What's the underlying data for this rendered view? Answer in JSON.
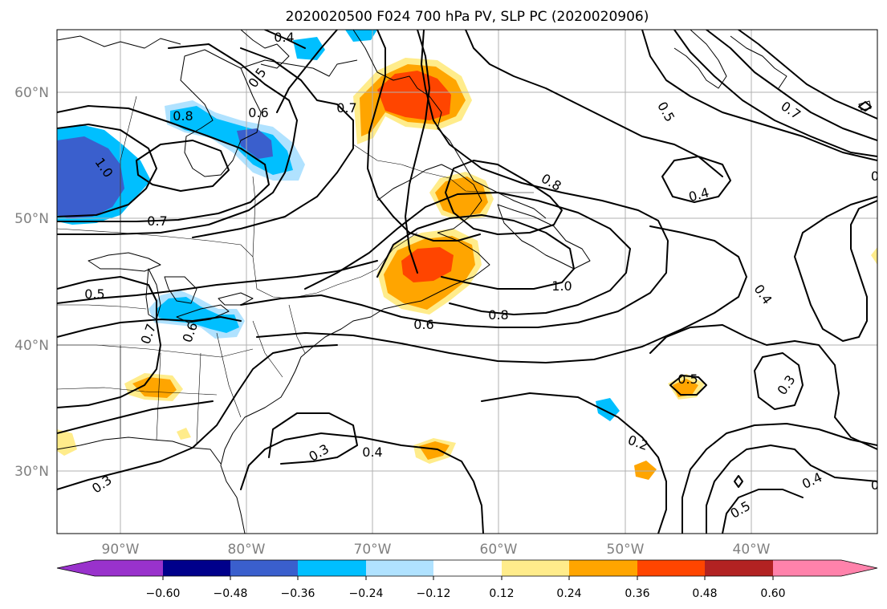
{
  "title": "2020020500 F024 700 hPa PV, SLP PC (2020020906)",
  "map": {
    "lon_range": [
      -95,
      -30
    ],
    "lat_range": [
      25,
      65
    ],
    "lat_labels": [
      "60°N",
      "50°N",
      "40°N",
      "30°N"
    ],
    "lon_labels": [
      "90°W",
      "80°W",
      "70°W",
      "60°W",
      "50°W",
      "40°W"
    ],
    "gridlines": true
  },
  "colorbar": {
    "colors": [
      "#9932cc",
      "#00008b",
      "#3a5fcd",
      "#00bfff",
      "#b0e2ff",
      "#ffffff",
      "#ffec8b",
      "#ffa500",
      "#ff4500",
      "#b22222",
      "#ff82ab"
    ],
    "tick_labels": [
      "−0.60",
      "−0.48",
      "−0.36",
      "−0.24",
      "−0.12",
      "0.12",
      "0.24",
      "0.36",
      "0.48",
      "0.60"
    ],
    "extend": "both"
  },
  "contour_labels": [
    {
      "id": "cl-0p4-top",
      "text": "0.4"
    },
    {
      "id": "cl-0p5-top",
      "text": "0.5"
    },
    {
      "id": "cl-0p8-nw",
      "text": "0.8"
    },
    {
      "id": "cl-0p6-n",
      "text": "0.6"
    },
    {
      "id": "cl-0p7-n",
      "text": "0.7"
    },
    {
      "id": "cl-1p0-w",
      "text": "1.0"
    },
    {
      "id": "cl-0p7-w",
      "text": "0.7"
    },
    {
      "id": "cl-0p5-w",
      "text": "0.5"
    },
    {
      "id": "cl-0p8-lab",
      "text": "0.8"
    },
    {
      "id": "cl-0p5-ne",
      "text": "0.5"
    },
    {
      "id": "cl-0p7-ne",
      "text": "0.7"
    },
    {
      "id": "cl-0p4-ne",
      "text": "0.4"
    },
    {
      "id": "cl-1p0-c",
      "text": "1.0"
    },
    {
      "id": "cl-0p8-c",
      "text": "0.8"
    },
    {
      "id": "cl-0p6-c",
      "text": "0.6"
    },
    {
      "id": "cl-0p4-e",
      "text": "0.4"
    },
    {
      "id": "cl-0p3-e",
      "text": "0.3"
    },
    {
      "id": "cl-0p5-e",
      "text": "0.5"
    },
    {
      "id": "cl-0p2-s",
      "text": "0.2"
    },
    {
      "id": "cl-0p3-s",
      "text": "0.3"
    },
    {
      "id": "cl-0p4-s",
      "text": "0.4"
    },
    {
      "id": "cl-0p7-gl",
      "text": "0.7"
    },
    {
      "id": "cl-0p6-gl",
      "text": "0.6"
    },
    {
      "id": "cl-0p4-se",
      "text": "0.4"
    },
    {
      "id": "cl-0p5-se",
      "text": "0.5"
    },
    {
      "id": "cl-0p3-sw",
      "text": "0.3"
    },
    {
      "id": "cl-edge-e1",
      "text": "0"
    },
    {
      "id": "cl-edge-e2",
      "text": "0"
    }
  ]
}
